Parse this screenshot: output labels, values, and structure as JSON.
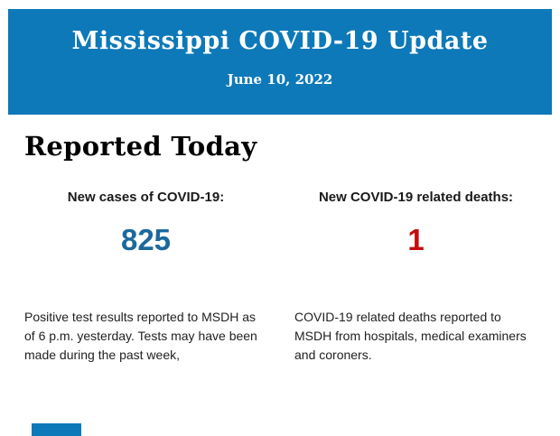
{
  "header": {
    "title": "Mississippi COVID-19 Update",
    "date": "June 10, 2022"
  },
  "section": {
    "heading": "Reported Today"
  },
  "stats": [
    {
      "label": "New cases of COVID-19:",
      "value": "825",
      "description": "Positive test results reported to MSDH as of 6 p.m. yesterday. Tests may have been made during the past week,"
    },
    {
      "label": "New COVID-19 related deaths:",
      "value": "1",
      "description": "COVID-19 related deaths reported to MSDH from hospitals, medical examiners and coroners."
    }
  ],
  "colors": {
    "banner_background": "#0d79b8",
    "banner_text": "#ffffff",
    "cases_value": "#1b699c",
    "deaths_value": "#c60c0c",
    "body_text": "#212121",
    "heading_text": "#000000"
  }
}
